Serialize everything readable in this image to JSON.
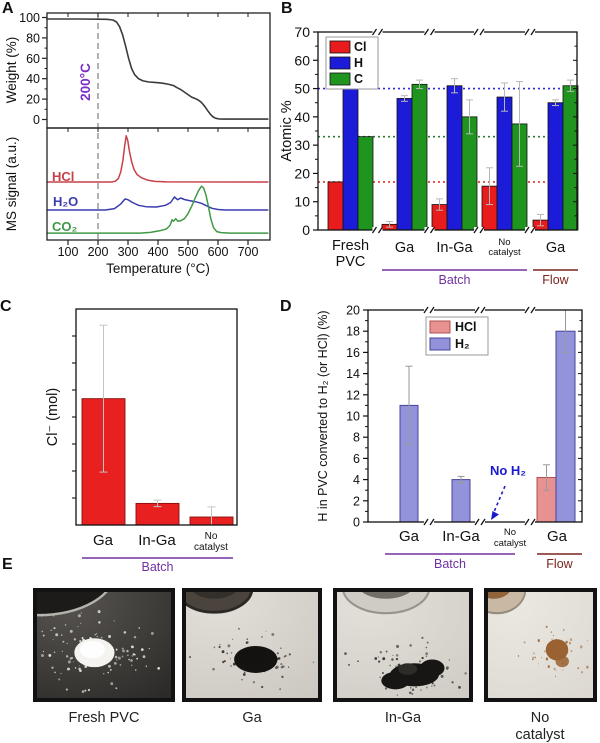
{
  "figure": {
    "panels": {
      "a": "A",
      "b": "B",
      "c": "C",
      "d": "D",
      "e": "E"
    }
  },
  "chart_data": [
    {
      "panel": "A",
      "type": "line",
      "xlabel": "Temperature (°C)",
      "xlim": [
        30,
        766
      ],
      "xticks": [
        100,
        200,
        300,
        400,
        500,
        600,
        700
      ],
      "vline": {
        "x": 200,
        "label": "200°C",
        "color": "#7a30c8",
        "line_color": "#808080",
        "style": "dashed"
      },
      "top_subplot": {
        "ylabel": "Weight (%)",
        "yticks": [
          0,
          20,
          40,
          60,
          80,
          100
        ],
        "ylim": [
          -8,
          106
        ],
        "series": [
          {
            "name": "TGA weight",
            "color": "#3b3b3b",
            "points": [
              [
                30,
                98.5
              ],
              [
                140,
                98.5
              ],
              [
                230,
                98.2
              ],
              [
                250,
                97.5
              ],
              [
                262,
                95.5
              ],
              [
                272,
                91
              ],
              [
                282,
                83
              ],
              [
                292,
                72
              ],
              [
                302,
                60
              ],
              [
                312,
                50
              ],
              [
                322,
                44
              ],
              [
                335,
                40
              ],
              [
                350,
                37.8
              ],
              [
                370,
                36.8
              ],
              [
                395,
                36.2
              ],
              [
                415,
                35.6
              ],
              [
                430,
                34.8
              ],
              [
                440,
                34.2
              ],
              [
                452,
                33.2
              ],
              [
                462,
                31.5
              ],
              [
                475,
                29.5
              ],
              [
                490,
                26.5
              ],
              [
                502,
                24
              ],
              [
                512,
                22
              ],
              [
                522,
                20.8
              ],
              [
                532,
                19.5
              ],
              [
                542,
                17.5
              ],
              [
                550,
                15
              ],
              [
                558,
                12
              ],
              [
                566,
                8.5
              ],
              [
                575,
                5
              ],
              [
                584,
                2.5
              ],
              [
                593,
                1.2
              ],
              [
                603,
                0.6
              ],
              [
                620,
                0.4
              ],
              [
                680,
                0.4
              ],
              [
                766,
                0.4
              ]
            ]
          }
        ]
      },
      "bottom_subplot": {
        "ylabel": "MS signal (a.u.)",
        "y_units": "arbitrary (0-1 of panel height)",
        "series": [
          {
            "name": "HCl",
            "color": "#c8404a",
            "points": [
              [
                30,
                0.518
              ],
              [
                245,
                0.518
              ],
              [
                258,
                0.525
              ],
              [
                268,
                0.55
              ],
              [
                276,
                0.61
              ],
              [
                283,
                0.71
              ],
              [
                289,
                0.84
              ],
              [
                294,
                0.93
              ],
              [
                299,
                0.89
              ],
              [
                305,
                0.79
              ],
              [
                312,
                0.7
              ],
              [
                320,
                0.63
              ],
              [
                330,
                0.585
              ],
              [
                345,
                0.555
              ],
              [
                365,
                0.535
              ],
              [
                390,
                0.523
              ],
              [
                430,
                0.519
              ],
              [
                766,
                0.518
              ]
            ]
          },
          {
            "name": "H₂O",
            "color": "#3b3bb0",
            "points": [
              [
                30,
                0.268
              ],
              [
                225,
                0.268
              ],
              [
                255,
                0.28
              ],
              [
                275,
                0.32
              ],
              [
                290,
                0.366
              ],
              [
                300,
                0.36
              ],
              [
                315,
                0.335
              ],
              [
                335,
                0.31
              ],
              [
                360,
                0.297
              ],
              [
                395,
                0.295
              ],
              [
                425,
                0.31
              ],
              [
                442,
                0.335
              ],
              [
                455,
                0.385
              ],
              [
                465,
                0.36
              ],
              [
                476,
                0.375
              ],
              [
                488,
                0.362
              ],
              [
                505,
                0.352
              ],
              [
                525,
                0.342
              ],
              [
                545,
                0.328
              ],
              [
                562,
                0.305
              ],
              [
                580,
                0.283
              ],
              [
                600,
                0.272
              ],
              [
                625,
                0.268
              ],
              [
                766,
                0.268
              ]
            ]
          },
          {
            "name": "CO₂",
            "color": "#3f9946",
            "points": [
              [
                30,
                0.062
              ],
              [
                340,
                0.062
              ],
              [
                375,
                0.068
              ],
              [
                405,
                0.082
              ],
              [
                428,
                0.098
              ],
              [
                440,
                0.13
              ],
              [
                447,
                0.18
              ],
              [
                452,
                0.168
              ],
              [
                459,
                0.19
              ],
              [
                466,
                0.168
              ],
              [
                476,
                0.172
              ],
              [
                488,
                0.19
              ],
              [
                500,
                0.235
              ],
              [
                512,
                0.3
              ],
              [
                524,
                0.375
              ],
              [
                535,
                0.44
              ],
              [
                545,
                0.48
              ],
              [
                552,
                0.465
              ],
              [
                560,
                0.4
              ],
              [
                568,
                0.3
              ],
              [
                576,
                0.19
              ],
              [
                585,
                0.11
              ],
              [
                596,
                0.075
              ],
              [
                610,
                0.066
              ],
              [
                640,
                0.062
              ],
              [
                766,
                0.062
              ]
            ]
          }
        ]
      }
    },
    {
      "panel": "B",
      "type": "bar",
      "ylabel": "Atomic %",
      "ylim": [
        0,
        70
      ],
      "yticks": [
        0,
        10,
        20,
        30,
        40,
        50,
        60,
        70
      ],
      "axis_breaks": true,
      "categories": [
        "Fresh PVC",
        "Ga",
        "In-Ga",
        "No catalyst",
        "Ga"
      ],
      "legend": [
        {
          "label": "Cl",
          "color": "#e81c1c"
        },
        {
          "label": "H",
          "color": "#1c1cd8"
        },
        {
          "label": "C",
          "color": "#1f941f"
        }
      ],
      "series": [
        {
          "name": "Cl",
          "color": "#e81c1c",
          "values": [
            17,
            2,
            9,
            15.5,
            3.5
          ],
          "errors": [
            0,
            1,
            2,
            6.5,
            2
          ]
        },
        {
          "name": "H",
          "color": "#1c1cd8",
          "values": [
            50,
            46.5,
            51,
            47,
            45
          ],
          "errors": [
            0,
            1,
            2.5,
            5,
            1
          ]
        },
        {
          "name": "C",
          "color": "#1f941f",
          "values": [
            33,
            51.5,
            40,
            37.5,
            51
          ],
          "errors": [
            0,
            1.5,
            6,
            15,
            2
          ]
        }
      ],
      "ref_lines": [
        {
          "y": 50,
          "color": "#2a2ae0"
        },
        {
          "y": 33,
          "color": "#2e7d32"
        },
        {
          "y": 17,
          "color": "#e03030"
        }
      ],
      "group_annotations": [
        {
          "label": "Batch",
          "color": "#7030a0",
          "from": 1,
          "to": 3
        },
        {
          "label": "Flow",
          "color": "#7a241e",
          "from": 4,
          "to": 4
        }
      ]
    },
    {
      "panel": "C",
      "type": "bar",
      "ylabel": "Cl⁻ (mol)",
      "y_axis_note": "tick marks unlabeled; values are fraction of axis height",
      "categories": [
        "Ga",
        "In-Ga",
        "No catalyst"
      ],
      "values": [
        0.585,
        0.1,
        0.037
      ],
      "errors": [
        0.34,
        0.015,
        0.047
      ],
      "bar_color": "#e82020",
      "group_annotations": [
        {
          "label": "Batch",
          "color": "#7030a0",
          "from": 0,
          "to": 2
        }
      ]
    },
    {
      "panel": "D",
      "type": "bar",
      "ylabel": "H in PVC converted to H₂ (or HCl) (%)",
      "ylim": [
        0,
        20
      ],
      "yticks": [
        0,
        2,
        4,
        6,
        8,
        10,
        12,
        14,
        16,
        18,
        20
      ],
      "axis_breaks": true,
      "categories": [
        "Ga",
        "In-Ga",
        "No catalyst",
        "Ga"
      ],
      "legend": [
        {
          "label": "HCl",
          "color": "#e79191"
        },
        {
          "label": "H₂",
          "color": "#9393dc"
        }
      ],
      "series": [
        {
          "name": "HCl",
          "color": "#e79191",
          "stroke": "#b05050",
          "values": [
            null,
            null,
            null,
            4.2
          ],
          "errors": [
            null,
            null,
            null,
            1.2
          ]
        },
        {
          "name": "H₂",
          "color": "#9393dc",
          "stroke": "#44449a",
          "values": [
            11,
            4,
            null,
            18
          ],
          "errors": [
            3.7,
            0.3,
            null,
            2
          ]
        }
      ],
      "annotation": {
        "text": "No H₂",
        "color": "#1a1acc",
        "category": "No catalyst"
      },
      "group_annotations": [
        {
          "label": "Batch",
          "color": "#7030a0",
          "from": 0,
          "to": 2
        },
        {
          "label": "Flow",
          "color": "#7a241e",
          "from": 3,
          "to": 3
        }
      ]
    }
  ],
  "panel_e": {
    "photos": [
      {
        "caption": "Fresh PVC",
        "bg": "#2d2b29",
        "bg_hi": "#575450",
        "pile": "#f4f3ef",
        "speckle": "#e9e9e4",
        "dish_fill": "#1c1b1a",
        "dish_rim": "#b5b3ae",
        "contents": ""
      },
      {
        "caption": "Ga",
        "bg": "#cdc9c2",
        "bg_hi": "#e2dfd8",
        "pile": "#141311",
        "speckle": "#35332e",
        "dish_fill": "#4a443d",
        "dish_rim": "#2c2824",
        "contents": "#332f2a"
      },
      {
        "caption": "In-Ga",
        "bg": "#d0ccc6",
        "bg_hi": "#e3e0da",
        "pile": "#171614",
        "speckle": "#3b3933",
        "dish_fill": "#cfccc5",
        "dish_rim": "#98948b",
        "contents": "#5c574e"
      },
      {
        "caption": "No catalyst",
        "bg": "#ddd9d2",
        "bg_hi": "#ebe8e2",
        "pile": "#9a6233",
        "speckle": "#a06a3a",
        "dish_fill": "#c9b8a4",
        "dish_rim": "#948b7e",
        "contents": "#8a5a30"
      }
    ]
  }
}
